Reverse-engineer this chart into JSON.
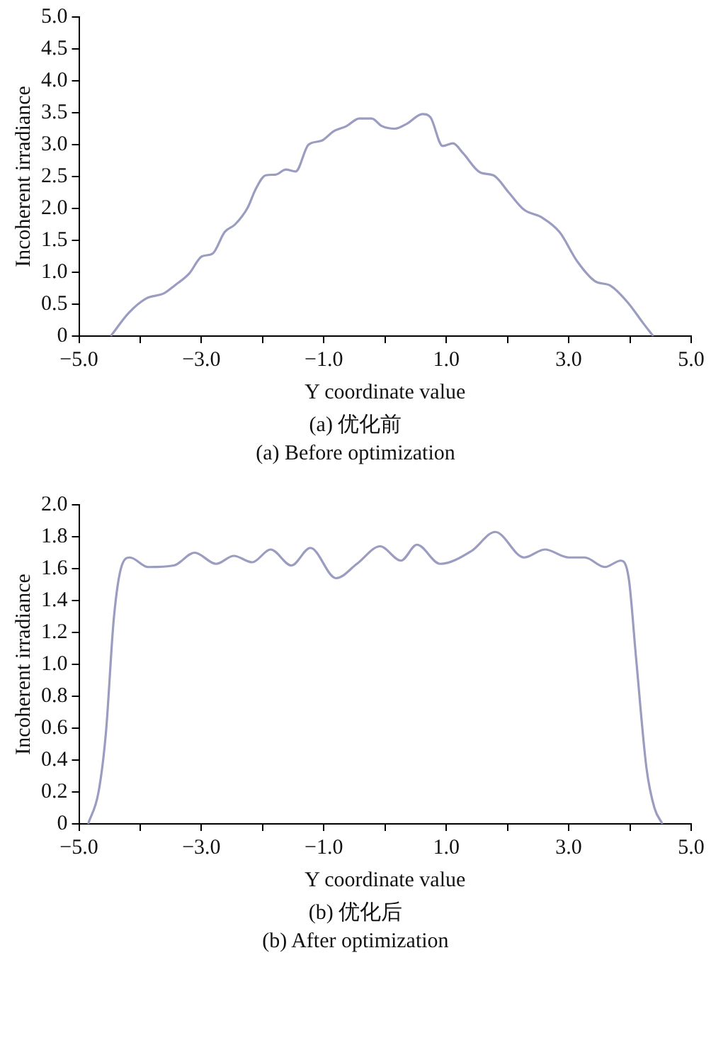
{
  "chart_data": [
    {
      "type": "line",
      "xlabel": "Y coordinate value",
      "ylabel": "Incoherent irradiance",
      "annotations": [
        "(a) 优化前",
        "(a) Before optimization"
      ],
      "xlim": [
        -5,
        5
      ],
      "ylim": [
        0,
        5
      ],
      "xticks": [
        {
          "value": -5,
          "label": "−5.0"
        },
        {
          "value": -4,
          "label": null
        },
        {
          "value": -3,
          "label": "−3.0"
        },
        {
          "value": -2,
          "label": null
        },
        {
          "value": -1,
          "label": "−1.0"
        },
        {
          "value": 0,
          "label": null
        },
        {
          "value": 1,
          "label": "1.0"
        },
        {
          "value": 2,
          "label": null
        },
        {
          "value": 3,
          "label": "3.0"
        },
        {
          "value": 4,
          "label": null
        },
        {
          "value": 5,
          "label": "5.0"
        }
      ],
      "yticks": [
        0,
        0.5,
        {
          "value": 1,
          "label": "1.0"
        },
        1.5,
        {
          "value": 2,
          "label": "2.0"
        },
        2.5,
        {
          "value": 3,
          "label": "3.0"
        },
        3.5,
        {
          "value": 4,
          "label": "4.0"
        },
        4.5,
        {
          "value": 5,
          "label": "5.0"
        }
      ],
      "grid": false,
      "legend": false,
      "marker": "none",
      "line_style": "solid",
      "series": [
        {
          "color": "#9a9cc0",
          "x": [
            -4.48,
            -4.19,
            -3.9,
            -3.61,
            -3.44,
            -3.2,
            -2.99,
            -2.82,
            -2.62,
            -2.45,
            -2.24,
            -2.12,
            -1.95,
            -1.79,
            -1.62,
            -1.46,
            -1.25,
            -1.04,
            -0.84,
            -0.63,
            -0.42,
            -0.22,
            -0.05,
            0.16,
            0.36,
            0.61,
            0.74,
            0.94,
            1.11,
            1.27,
            1.56,
            1.77,
            2.02,
            2.27,
            2.56,
            2.85,
            3.14,
            3.43,
            3.68,
            3.97,
            4.21,
            4.38
          ],
          "values": [
            0,
            0.36,
            0.59,
            0.67,
            0.79,
            0.98,
            1.25,
            1.29,
            1.63,
            1.75,
            2.02,
            2.29,
            2.52,
            2.53,
            2.61,
            2.58,
            3.0,
            3.06,
            3.21,
            3.29,
            3.41,
            3.41,
            3.29,
            3.25,
            3.33,
            3.48,
            3.43,
            2.98,
            3.02,
            2.87,
            2.56,
            2.52,
            2.25,
            1.98,
            1.86,
            1.63,
            1.17,
            0.86,
            0.79,
            0.52,
            0.21,
            0
          ]
        }
      ]
    },
    {
      "type": "line",
      "xlabel": "Y coordinate value",
      "ylabel": "Incoherent irradiance",
      "annotations": [
        "(b) 优化后",
        "(b) After optimization"
      ],
      "xlim": [
        -5,
        5
      ],
      "ylim": [
        0,
        2
      ],
      "xticks": [
        {
          "value": -5,
          "label": "−5.0"
        },
        {
          "value": -4,
          "label": null
        },
        {
          "value": -3,
          "label": "−3.0"
        },
        {
          "value": -2,
          "label": null
        },
        {
          "value": -1,
          "label": "−1.0"
        },
        {
          "value": 0,
          "label": null
        },
        {
          "value": 1,
          "label": "1.0"
        },
        {
          "value": 2,
          "label": null
        },
        {
          "value": 3,
          "label": "3.0"
        },
        {
          "value": 4,
          "label": null
        },
        {
          "value": 5,
          "label": "5.0"
        }
      ],
      "yticks": [
        0,
        0.2,
        0.4,
        0.6,
        0.8,
        {
          "value": 1,
          "label": "1.0"
        },
        1.2,
        1.4,
        1.6,
        1.8,
        {
          "value": 2,
          "label": "2.0"
        }
      ],
      "grid": false,
      "legend": false,
      "marker": "none",
      "line_style": "solid",
      "series": [
        {
          "color": "#9a9cc0",
          "x": [
            -4.85,
            -4.68,
            -4.56,
            -4.43,
            -4.3,
            -4.17,
            -3.87,
            -3.45,
            -3.11,
            -2.76,
            -2.47,
            -2.17,
            -1.87,
            -1.53,
            -1.22,
            -0.8,
            -0.46,
            -0.08,
            0.26,
            0.52,
            0.9,
            1.41,
            1.8,
            2.27,
            2.61,
            3.0,
            3.26,
            3.59,
            3.85,
            3.98,
            4.1,
            4.27,
            4.4,
            4.53
          ],
          "values": [
            0,
            0.2,
            0.57,
            1.29,
            1.62,
            1.67,
            1.61,
            1.62,
            1.7,
            1.63,
            1.68,
            1.64,
            1.72,
            1.62,
            1.73,
            1.54,
            1.63,
            1.74,
            1.65,
            1.75,
            1.63,
            1.71,
            1.83,
            1.67,
            1.72,
            1.67,
            1.67,
            1.61,
            1.65,
            1.54,
            1.04,
            0.35,
            0.1,
            0
          ]
        }
      ]
    }
  ]
}
